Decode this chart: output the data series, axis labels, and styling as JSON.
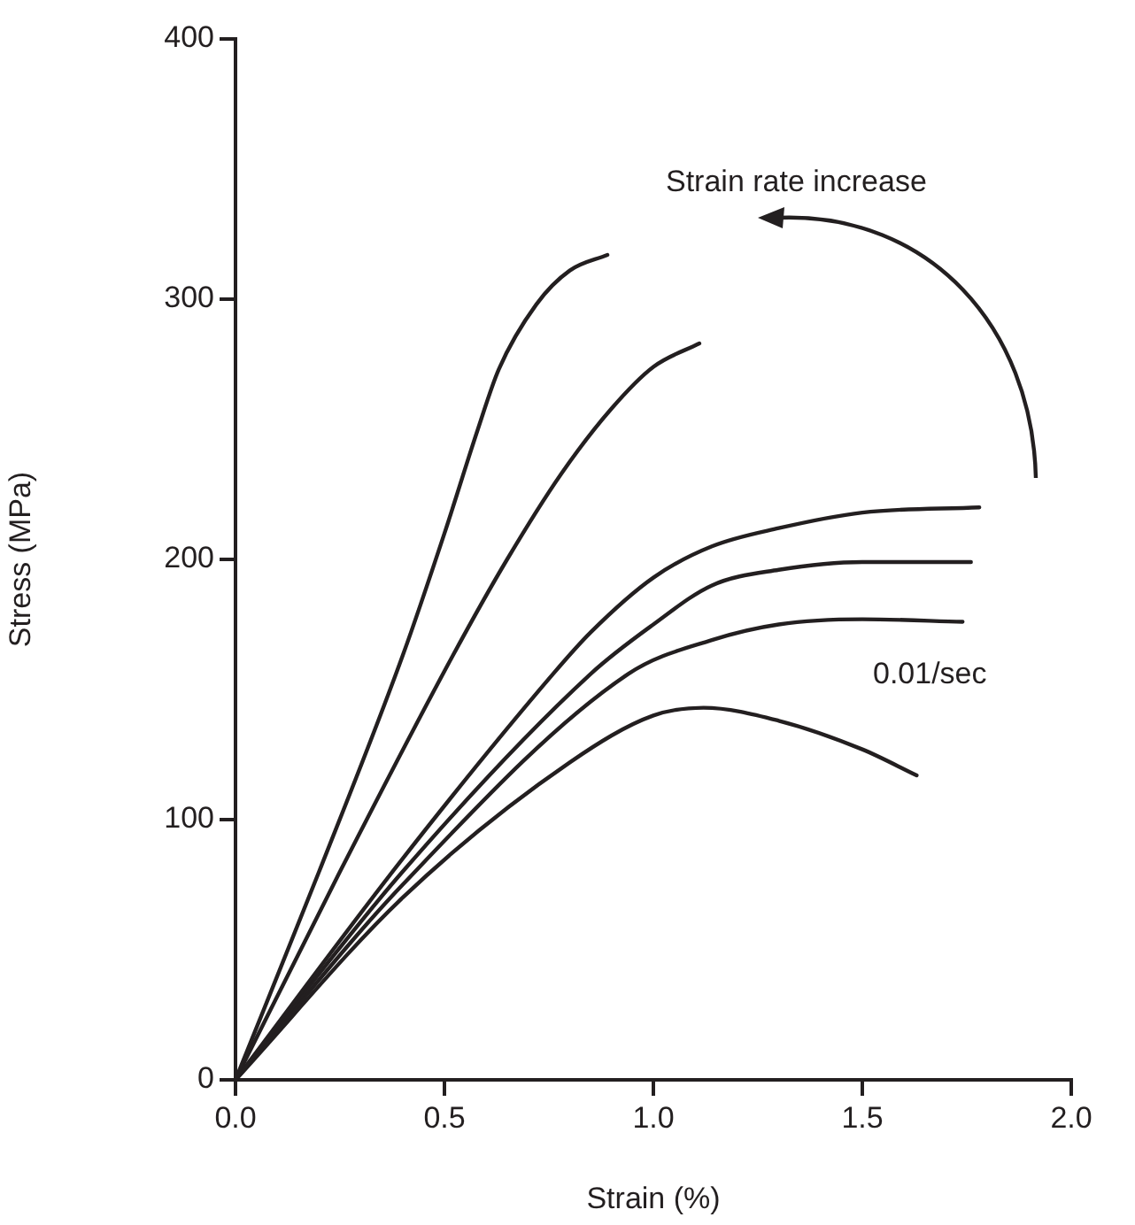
{
  "chart_data": {
    "type": "line",
    "xlabel": "Strain (%)",
    "ylabel": "Stress (MPa)",
    "xlim": [
      0,
      2
    ],
    "xticks": [
      {
        "value": 0,
        "label": "0.0"
      },
      {
        "value": 0.5,
        "label": "0.5"
      },
      {
        "value": 1,
        "label": "1.0"
      },
      {
        "value": 1.5,
        "label": "1.5"
      },
      {
        "value": 2,
        "label": "2.0"
      }
    ],
    "ylim": [
      0,
      400
    ],
    "yticks": [
      0,
      100,
      200,
      300,
      400
    ],
    "grid": false,
    "legend": false,
    "marker": "none",
    "line_style": "solid",
    "annotations": [
      "Strain rate increase",
      "0.01/sec"
    ],
    "series": [
      {
        "color": "#231f20",
        "x": [
          0,
          0.2,
          0.4,
          0.5,
          0.58,
          0.63,
          0.72,
          0.8,
          0.89
        ],
        "values": [
          0,
          80,
          163,
          210,
          250,
          273,
          298,
          311,
          317
        ]
      },
      {
        "color": "#231f20",
        "x": [
          0,
          0.25,
          0.52,
          0.65,
          0.78,
          0.9,
          1.0,
          1.11
        ],
        "values": [
          0,
          80,
          163,
          200,
          233,
          258,
          274,
          283
        ]
      },
      {
        "color": "#231f20",
        "x": [
          0,
          0.4,
          0.76,
          0.85,
          1.0,
          1.14,
          1.3,
          1.5,
          1.78
        ],
        "values": [
          0,
          85,
          156,
          172,
          193,
          205,
          212,
          218,
          220
        ]
      },
      {
        "color": "#231f20",
        "x": [
          0,
          0.4,
          0.85,
          1.0,
          1.14,
          1.3,
          1.5,
          1.76
        ],
        "values": [
          0,
          80,
          156,
          175,
          190,
          196,
          199,
          199
        ]
      },
      {
        "color": "#231f20",
        "x": [
          0,
          0.4,
          0.94,
          1.14,
          1.3,
          1.5,
          1.74
        ],
        "values": [
          0,
          75,
          156,
          169,
          175,
          177,
          176
        ]
      },
      {
        "color": "#231f20",
        "x": [
          0,
          0.4,
          0.8,
          1.0,
          1.12,
          1.3,
          1.5,
          1.63
        ],
        "values": [
          0,
          70,
          122,
          140,
          143,
          138,
          127,
          117
        ]
      }
    ]
  }
}
